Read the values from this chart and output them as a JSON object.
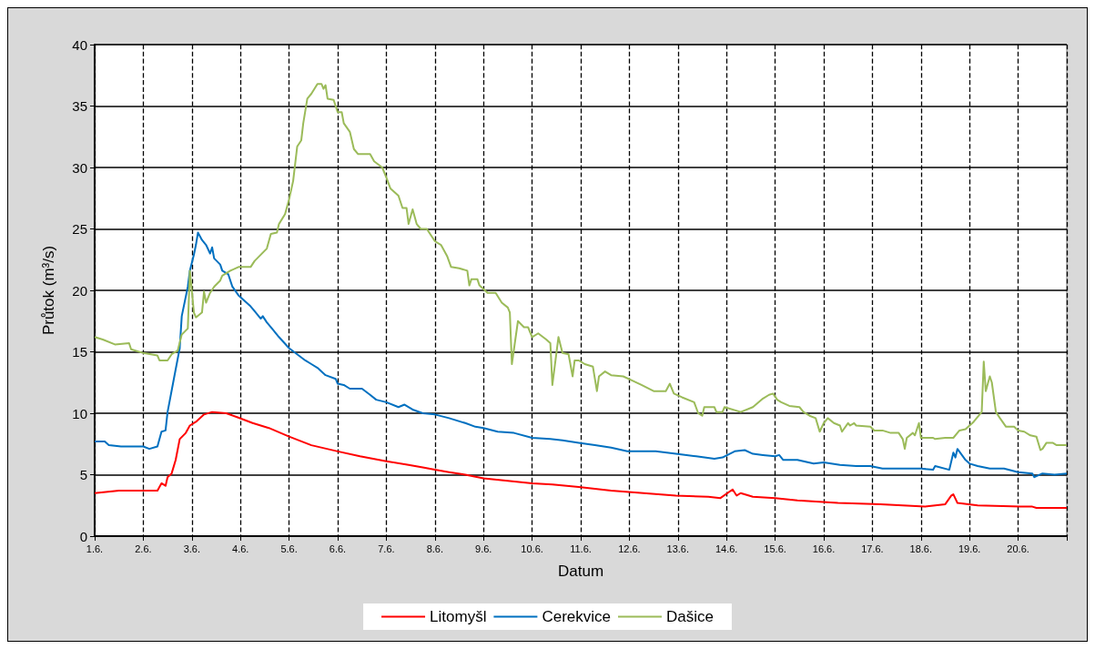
{
  "chart_data": {
    "type": "line",
    "xlabel": "Datum",
    "ylabel": "Průtok (m³/s)",
    "xlim": [
      "--06-01",
      "--06-21"
    ],
    "ylim": [
      0,
      40
    ],
    "yticks": [
      0,
      5,
      10,
      15,
      20,
      25,
      30,
      35,
      40
    ],
    "xticks": [
      {
        "value": "--06-01",
        "label": "1.6."
      },
      {
        "value": "--06-02",
        "label": "2.6."
      },
      {
        "value": "--06-03",
        "label": "3.6."
      },
      {
        "value": "--06-04",
        "label": "4.6."
      },
      {
        "value": "--06-05",
        "label": "5.6."
      },
      {
        "value": "--06-06",
        "label": "6.6."
      },
      {
        "value": "--06-07",
        "label": "7.6."
      },
      {
        "value": "--06-08",
        "label": "8.6."
      },
      {
        "value": "--06-09",
        "label": "9.6."
      },
      {
        "value": "--06-10",
        "label": "10.6."
      },
      {
        "value": "--06-11",
        "label": "11.6."
      },
      {
        "value": "--06-12",
        "label": "12.6."
      },
      {
        "value": "--06-13",
        "label": "13.6."
      },
      {
        "value": "--06-14",
        "label": "14.6."
      },
      {
        "value": "--06-15",
        "label": "15.6."
      },
      {
        "value": "--06-16",
        "label": "16.6."
      },
      {
        "value": "--06-17",
        "label": "17.6."
      },
      {
        "value": "--06-18",
        "label": "18.6."
      },
      {
        "value": "--06-19",
        "label": "19.6."
      },
      {
        "value": "--06-20",
        "label": "20.6."
      },
      {
        "value": "--06-21",
        "label": null
      }
    ],
    "grid": true,
    "legend": "bottom",
    "marker": "none",
    "line_style": "solid",
    "series": [
      {
        "name": "Litomyšl",
        "color": "#ff0000",
        "x": [
          "--06-01T00:00",
          "--06-01T12:00",
          "--06-02T07:00",
          "--06-02T09:00",
          "--06-02T11:00",
          "--06-02T12:00",
          "--06-02T14:00",
          "--06-02T16:00",
          "--06-02T18:00",
          "--06-02T21:00",
          "--06-02T23:00",
          "--06-03T02:00",
          "--06-03T06:00",
          "--06-03T10:00",
          "--06-03T17:00",
          "--06-03T22:00",
          "--06-04T06:00",
          "--06-04T14:00",
          "--06-05T00:00",
          "--06-05T11:00",
          "--06-06T00:00",
          "--06-06T11:00",
          "--06-07T00:00",
          "--06-07T11:00",
          "--06-07T18:00",
          "--06-08T00:00",
          "--06-08T07:00",
          "--06-08T15:00",
          "--06-09T00:00",
          "--06-09T12:00",
          "--06-10T00:00",
          "--06-10T10:00",
          "--06-10T23:00",
          "--06-11T15:00",
          "--06-12T07:00",
          "--06-12T23:00",
          "--06-13T15:00",
          "--06-13T21:00",
          "--06-14T03:00",
          "--06-14T05:00",
          "--06-14T07:00",
          "--06-14T13:00",
          "--06-15T00:00",
          "--06-15T11:00",
          "--06-16T07:00",
          "--06-17T04:00",
          "--06-18T02:00",
          "--06-18T12:00",
          "--06-18T15:00",
          "--06-18T16:00",
          "--06-18T18:00",
          "--06-19T04:00",
          "--06-20T01:00",
          "--06-20T07:00",
          "--06-20T09:00",
          "--06-21T00:00"
        ],
        "values": [
          3.5,
          3.7,
          3.7,
          4.3,
          4.1,
          4.8,
          5.1,
          6.2,
          7.9,
          8.4,
          9.0,
          9.3,
          9.9,
          10.1,
          10.0,
          9.7,
          9.2,
          8.8,
          8.1,
          7.4,
          6.9,
          6.5,
          6.1,
          5.8,
          5.6,
          5.4,
          5.2,
          5.0,
          4.7,
          4.5,
          4.3,
          4.2,
          4.0,
          3.7,
          3.5,
          3.3,
          3.2,
          3.1,
          3.8,
          3.3,
          3.5,
          3.2,
          3.1,
          2.9,
          2.7,
          2.6,
          2.4,
          2.6,
          3.3,
          3.4,
          2.7,
          2.5,
          2.4,
          2.4,
          2.3,
          2.3
        ]
      },
      {
        "name": "Cerekvice",
        "color": "#0070c0",
        "x": [
          "--06-01T00:00",
          "--06-01T05:00",
          "--06-01T07:00",
          "--06-01T13:00",
          "--06-02T00:00",
          "--06-02T03:00",
          "--06-02T07:00",
          "--06-02T09:00",
          "--06-02T11:00",
          "--06-02T12:00",
          "--06-02T15:00",
          "--06-02T18:00",
          "--06-02T19:00",
          "--06-02T22:00",
          "--06-02T23:00",
          "--06-03T01:00",
          "--06-03T02:00",
          "--06-03T03:00",
          "--06-03T05:00",
          "--06-03T07:00",
          "--06-03T09:00",
          "--06-03T10:00",
          "--06-03T11:00",
          "--06-03T14:00",
          "--06-03T15:00",
          "--06-03T18:00",
          "--06-03T20:00",
          "--06-03T23:00",
          "--06-04T05:00",
          "--06-04T07:00",
          "--06-04T10:00",
          "--06-04T11:00",
          "--06-04T13:00",
          "--06-04T16:00",
          "--06-04T19:00",
          "--06-05T00:00",
          "--06-05T04:00",
          "--06-05T08:00",
          "--06-05T11:00",
          "--06-05T14:00",
          "--06-05T18:00",
          "--06-05T23:00",
          "--06-06T00:00",
          "--06-06T03:00",
          "--06-06T06:00",
          "--06-06T12:00",
          "--06-06T16:00",
          "--06-06T19:00",
          "--06-07T00:00",
          "--06-07T06:00",
          "--06-07T09:00",
          "--06-07T13:00",
          "--06-07T18:00",
          "--06-08T00:00",
          "--06-08T07:00",
          "--06-08T15:00",
          "--06-08T20:00",
          "--06-09T00:00",
          "--06-09T07:00",
          "--06-09T15:00",
          "--06-10T00:00",
          "--06-10T09:00",
          "--06-10T15:00",
          "--06-10T23:00",
          "--06-11T07:00",
          "--06-11T15:00",
          "--06-11T23:00",
          "--06-12T13:00",
          "--06-12T23:00",
          "--06-13T09:00",
          "--06-13T18:00",
          "--06-13T22:00",
          "--06-14T04:00",
          "--06-14T09:00",
          "--06-14T13:00",
          "--06-14T18:00",
          "--06-15T00:00",
          "--06-15T02:00",
          "--06-15T04:00",
          "--06-15T11:00",
          "--06-15T19:00",
          "--06-16T00:00",
          "--06-16T08:00",
          "--06-16T16:00",
          "--06-16T23:00",
          "--06-17T05:00",
          "--06-18T00:00",
          "--06-18T06:00",
          "--06-18T07:00",
          "--06-18T14:00",
          "--06-18T16:00",
          "--06-18T17:00",
          "--06-18T18:00",
          "--06-18T22:00",
          "--06-19T00:00",
          "--06-19T04:00",
          "--06-19T10:00",
          "--06-19T17:00",
          "--06-20T00:00",
          "--06-20T07:00",
          "--06-20T08:00",
          "--06-20T12:00",
          "--06-20T18:00",
          "--06-21T00:00"
        ],
        "values": [
          7.7,
          7.7,
          7.4,
          7.3,
          7.3,
          7.1,
          7.3,
          8.5,
          8.6,
          10.1,
          12.7,
          15.3,
          17.9,
          20.3,
          21.6,
          22.9,
          23.7,
          24.7,
          24.1,
          23.7,
          23.0,
          23.5,
          22.6,
          22.1,
          21.6,
          21.3,
          20.3,
          19.6,
          18.7,
          18.3,
          17.7,
          17.9,
          17.4,
          16.8,
          16.2,
          15.3,
          14.8,
          14.3,
          14.0,
          13.7,
          13.1,
          12.8,
          12.4,
          12.3,
          12.0,
          12.0,
          11.5,
          11.1,
          10.9,
          10.5,
          10.7,
          10.3,
          10.0,
          9.9,
          9.6,
          9.2,
          8.9,
          8.8,
          8.5,
          8.4,
          8.0,
          7.9,
          7.8,
          7.6,
          7.4,
          7.2,
          6.9,
          6.9,
          6.7,
          6.5,
          6.3,
          6.4,
          6.9,
          7.0,
          6.7,
          6.6,
          6.5,
          6.6,
          6.2,
          6.2,
          5.9,
          6.0,
          5.8,
          5.7,
          5.7,
          5.5,
          5.5,
          5.4,
          5.7,
          5.4,
          6.8,
          6.4,
          7.1,
          6.2,
          5.9,
          5.7,
          5.5,
          5.5,
          5.2,
          5.1,
          4.8,
          5.1,
          5.0,
          5.1
        ]
      },
      {
        "name": "Dašice",
        "color": "#9bbb59",
        "x": [
          "--06-01T00:00",
          "--06-01T04:00",
          "--06-01T10:00",
          "--06-01T17:00",
          "--06-01T18:00",
          "--06-02T00:00",
          "--06-02T07:00",
          "--06-02T08:00",
          "--06-02T12:00",
          "--06-02T14:00",
          "--06-02T17:00",
          "--06-02T19:00",
          "--06-02T22:00",
          "--06-02T23:00",
          "--06-03T01:00",
          "--06-03T02:00",
          "--06-03T05:00",
          "--06-03T06:00",
          "--06-03T07:00",
          "--06-03T09:00",
          "--06-03T11:00",
          "--06-03T14:00",
          "--06-03T15:00",
          "--06-03T19:00",
          "--06-03T23:00",
          "--06-04T05:00",
          "--06-04T07:00",
          "--06-04T10:00",
          "--06-04T13:00",
          "--06-04T15:00",
          "--06-04T18:00",
          "--06-04T19:00",
          "--06-04T22:00",
          "--06-05T00:00",
          "--06-05T02:00",
          "--06-05T04:00",
          "--06-05T06:00",
          "--06-05T07:00",
          "--06-05T09:00",
          "--06-05T11:00",
          "--06-05T14:00",
          "--06-05T16:00",
          "--06-05T17:00",
          "--06-05T18:00",
          "--06-05T19:00",
          "--06-05T22:00",
          "--06-06T00:00",
          "--06-06T02:00",
          "--06-06T03:00",
          "--06-06T06:00",
          "--06-06T08:00",
          "--06-06T10:00",
          "--06-06T16:00",
          "--06-06T18:00",
          "--06-06T22:00",
          "--06-07T00:00",
          "--06-07T02:00",
          "--06-07T06:00",
          "--06-07T08:00",
          "--06-07T10:00",
          "--06-07T11:00",
          "--06-07T13:00",
          "--06-07T15:00",
          "--06-07T17:00",
          "--06-07T20:00",
          "--06-08T00:00",
          "--06-08T03:00",
          "--06-08T06:00",
          "--06-08T08:00",
          "--06-08T12:00",
          "--06-08T16:00",
          "--06-08T17:00",
          "--06-08T18:00",
          "--06-08T21:00",
          "--06-08T22:00",
          "--06-09T02:00",
          "--06-09T06:00",
          "--06-09T09:00",
          "--06-09T12:00",
          "--06-09T13:00",
          "--06-09T14:00",
          "--06-09T17:00",
          "--06-09T20:00",
          "--06-09T22:00",
          "--06-10T00:00",
          "--06-10T03:00",
          "--06-10T07:00",
          "--06-10T09:00",
          "--06-10T10:00",
          "--06-10T13:00",
          "--06-10T15:00",
          "--06-10T18:00",
          "--06-10T20:00",
          "--06-10T21:00",
          "--06-10T23:00",
          "--06-11T02:00",
          "--06-11T06:00",
          "--06-11T08:00",
          "--06-11T09:00",
          "--06-11T12:00",
          "--06-11T15:00",
          "--06-11T21:00",
          "--06-12T01:00",
          "--06-12T06:00",
          "--06-12T12:00",
          "--06-12T18:00",
          "--06-12T20:00",
          "--06-12T22:00",
          "--06-13T02:00",
          "--06-13T08:00",
          "--06-13T10:00",
          "--06-13T12:00",
          "--06-13T13:00",
          "--06-13T18:00",
          "--06-13T19:00",
          "--06-13T22:00",
          "--06-13T23:00",
          "--06-14T07:00",
          "--06-14T13:00",
          "--06-14T18:00",
          "--06-14T21:00",
          "--06-14T23:00",
          "--06-15T01:00",
          "--06-15T03:00",
          "--06-15T07:00",
          "--06-15T12:00",
          "--06-15T14:00",
          "--06-15T17:00",
          "--06-15T20:00",
          "--06-15T22:00",
          "--06-16T00:00",
          "--06-16T02:00",
          "--06-16T05:00",
          "--06-16T08:00",
          "--06-16T09:00",
          "--06-16T12:00",
          "--06-16T13:00",
          "--06-16T15:00",
          "--06-16T16:00",
          "--06-16T23:00",
          "--06-17T01:00",
          "--06-17T05:00",
          "--06-17T09:00",
          "--06-17T13:00",
          "--06-17T15:00",
          "--06-17T16:00",
          "--06-17T17:00",
          "--06-17T20:00",
          "--06-17T21:00",
          "--06-17T23:00",
          "--06-18T00:00",
          "--06-18T06:00",
          "--06-18T07:00",
          "--06-18T12:00",
          "--06-18T16:00",
          "--06-18T19:00",
          "--06-18T22:00",
          "--06-19T02:00",
          "--06-19T06:00",
          "--06-19T07:00",
          "--06-19T08:00",
          "--06-19T10:00",
          "--06-19T11:00",
          "--06-19T13:00",
          "--06-19T15:00",
          "--06-19T18:00",
          "--06-19T22:00",
          "--06-20T00:00",
          "--06-20T03:00",
          "--06-20T06:00",
          "--06-20T09:00",
          "--06-20T11:00",
          "--06-20T12:00",
          "--06-20T14:00",
          "--06-20T17:00",
          "--06-20T19:00",
          "--06-21T00:00"
        ],
        "values": [
          16.2,
          16.0,
          15.6,
          15.7,
          15.2,
          14.9,
          14.7,
          14.3,
          14.3,
          14.8,
          15.1,
          16.4,
          16.9,
          21.6,
          18.2,
          17.8,
          18.2,
          19.9,
          19.0,
          19.8,
          20.3,
          20.8,
          21.2,
          21.6,
          21.9,
          21.9,
          22.4,
          22.9,
          23.4,
          24.6,
          24.7,
          25.4,
          26.2,
          27.4,
          28.9,
          31.7,
          32.2,
          33.6,
          35.6,
          36.0,
          36.8,
          36.8,
          36.4,
          36.7,
          35.6,
          35.5,
          34.5,
          34.5,
          33.6,
          32.9,
          31.5,
          31.1,
          31.1,
          30.5,
          30.0,
          29.2,
          28.3,
          27.7,
          26.7,
          26.7,
          25.4,
          26.6,
          25.4,
          25.0,
          25.0,
          24.0,
          23.7,
          22.8,
          21.9,
          21.8,
          21.6,
          20.4,
          20.9,
          20.9,
          20.4,
          19.8,
          19.8,
          19.0,
          18.6,
          18.2,
          14.0,
          17.5,
          17.0,
          17.0,
          16.2,
          16.5,
          16.0,
          15.7,
          12.3,
          16.2,
          14.9,
          14.8,
          13.0,
          14.3,
          14.3,
          14.0,
          13.8,
          11.8,
          13.0,
          13.4,
          13.1,
          13.0,
          12.7,
          12.3,
          11.8,
          11.8,
          12.4,
          11.6,
          11.3,
          10.9,
          10.0,
          9.8,
          10.5,
          10.5,
          10.1,
          10.1,
          10.5,
          10.1,
          10.5,
          11.2,
          11.5,
          11.6,
          11.1,
          10.9,
          10.6,
          10.5,
          10.1,
          9.8,
          9.6,
          8.5,
          9.2,
          9.6,
          9.2,
          9.0,
          8.5,
          9.2,
          9.0,
          9.2,
          9.0,
          8.9,
          8.6,
          8.6,
          8.4,
          8.4,
          7.9,
          7.1,
          8.0,
          8.4,
          8.2,
          9.2,
          8.0,
          8.0,
          7.9,
          8.0,
          8.0,
          8.6,
          8.7,
          9.3,
          10.1,
          14.2,
          11.8,
          13.0,
          12.5,
          10.1,
          9.6,
          8.9,
          8.9,
          8.6,
          8.5,
          8.2,
          8.1,
          7.0,
          7.1,
          7.6,
          7.6,
          7.4,
          7.4
        ]
      }
    ]
  }
}
